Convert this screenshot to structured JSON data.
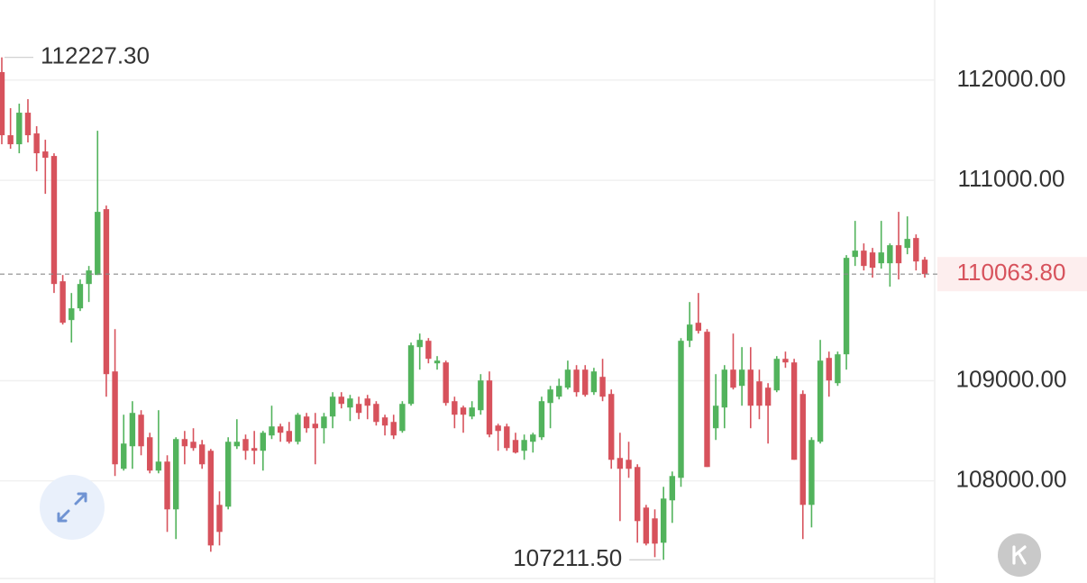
{
  "chart_data": {
    "type": "candlestick",
    "ylim": [
      106980,
      112800
    ],
    "yticks": [
      {
        "value": 108000,
        "label": "108000.00"
      },
      {
        "value": 109000,
        "label": "109000.00"
      },
      {
        "value": 111000,
        "label": "111000.00"
      },
      {
        "value": 112000,
        "label": "112000.00"
      }
    ],
    "grid": true,
    "color_up": "#52b35c",
    "color_down": "#d7525c",
    "high_label": "112227.30",
    "low_label": "107211.50",
    "last_label": "110063.80",
    "open": [
      112080,
      111450,
      111360,
      111675,
      111468,
      111288,
      111243,
      109992,
      109605,
      109722,
      109965,
      110055,
      110712,
      109092,
      108120,
      108345,
      108660,
      108435,
      108102,
      108192,
      107715,
      108417,
      108390,
      108363,
      108300,
      107760,
      107742,
      108345,
      108417,
      108327,
      108300,
      108453,
      108543,
      108498,
      108390,
      108642,
      108570,
      108525,
      108642,
      108840,
      108732,
      108768,
      108822,
      108768,
      108633,
      108588,
      108498,
      108768,
      109335,
      109398,
      109173,
      109182,
      108795,
      108732,
      108642,
      108705,
      109002,
      108552,
      108543,
      108408,
      108300,
      108390,
      108435,
      108777,
      108840,
      108930,
      109110,
      109110,
      108885,
      109038,
      108867,
      108228,
      108210,
      108138,
      107733,
      107625,
      107382,
      107805,
      108030,
      109398,
      109578,
      109488,
      108525,
      108732,
      109110,
      108948,
      109110,
      108993,
      108930,
      108903,
      109218,
      109182,
      108867,
      107760,
      108390,
      109227,
      108975,
      109263,
      110235,
      110298,
      110280,
      110172,
      110172,
      110352,
      110325,
      110424,
      110208
    ],
    "high": [
      112227.3,
      111720,
      111765,
      111810,
      111540,
      111405,
      111270,
      110055,
      109875,
      110010,
      110145,
      111495,
      110748,
      109515,
      108660,
      108795,
      108705,
      108480,
      108705,
      108255,
      108435,
      108498,
      108525,
      108408,
      108318,
      107895,
      108435,
      108615,
      108462,
      108498,
      108498,
      108750,
      108570,
      108588,
      108678,
      108678,
      108678,
      108678,
      108885,
      108885,
      108858,
      108840,
      108858,
      108795,
      108660,
      108660,
      108795,
      109380,
      109470,
      109425,
      109245,
      109200,
      108840,
      108750,
      108795,
      109065,
      109092,
      108570,
      108570,
      108480,
      108462,
      108480,
      108840,
      108948,
      109020,
      109200,
      109155,
      109155,
      109128,
      109218,
      108912,
      108480,
      108390,
      108165,
      107760,
      107715,
      107940,
      108093,
      109425,
      109785,
      109875,
      109515,
      109065,
      109155,
      109470,
      109335,
      109335,
      109110,
      108975,
      109245,
      109290,
      109218,
      108903,
      108435,
      109407,
      109290,
      109290,
      110253,
      110595,
      110370,
      110325,
      110595,
      110370,
      110685,
      110640,
      110460,
      110235
    ],
    "low": [
      111360,
      111315,
      111270,
      111378,
      111090,
      110865,
      109875,
      109560,
      109380,
      109695,
      109785,
      110055,
      108840,
      108048,
      108102,
      108120,
      108255,
      108075,
      108075,
      107490,
      107418,
      108165,
      108300,
      108120,
      107292,
      107355,
      107715,
      108318,
      108210,
      108165,
      108102,
      108417,
      108390,
      108372,
      108363,
      108480,
      108165,
      108372,
      108525,
      108723,
      108597,
      108615,
      108615,
      108552,
      108453,
      108417,
      108480,
      108750,
      109110,
      109173,
      109110,
      108750,
      108525,
      108480,
      108615,
      108660,
      108435,
      108300,
      108300,
      108273,
      108210,
      108282,
      108408,
      108525,
      108813,
      108912,
      108840,
      108840,
      108858,
      108795,
      108120,
      107598,
      108030,
      107382,
      107355,
      107238,
      107211.5,
      107580,
      107940,
      109335,
      109470,
      108138,
      108408,
      108525,
      108912,
      108750,
      108525,
      108615,
      108372,
      108885,
      109128,
      108210,
      107418,
      107535,
      108372,
      108840,
      108948,
      109110,
      110145,
      110100,
      110028,
      110118,
      109938,
      110010,
      110262,
      110100,
      110028
    ],
    "close": [
      111450,
      111360,
      111675,
      111450,
      111270,
      111225,
      109965,
      109578,
      109722,
      109965,
      110100,
      110685,
      109065,
      108165,
      108372,
      108678,
      108345,
      108102,
      108192,
      107715,
      108417,
      108345,
      108327,
      108165,
      107355,
      107490,
      108390,
      108390,
      108300,
      108300,
      108480,
      108543,
      108480,
      108390,
      108660,
      108525,
      108525,
      108642,
      108840,
      108768,
      108822,
      108678,
      108750,
      108588,
      108552,
      108453,
      108768,
      109353,
      109407,
      109218,
      109200,
      108777,
      108660,
      108660,
      108732,
      109002,
      108462,
      108498,
      108327,
      108282,
      108408,
      108462,
      108795,
      108912,
      108948,
      109110,
      108885,
      108858,
      109092,
      108840,
      108210,
      108120,
      108120,
      107598,
      107373,
      107373,
      107823,
      108048,
      109398,
      109560,
      109497,
      108138,
      108750,
      109110,
      108930,
      109110,
      108750,
      108750,
      108750,
      109218,
      109182,
      108210,
      107760,
      108408,
      109200,
      109002,
      109263,
      110226,
      110298,
      110145,
      110127,
      110280,
      110352,
      110172,
      110415,
      110190,
      110063.8
    ]
  }
}
